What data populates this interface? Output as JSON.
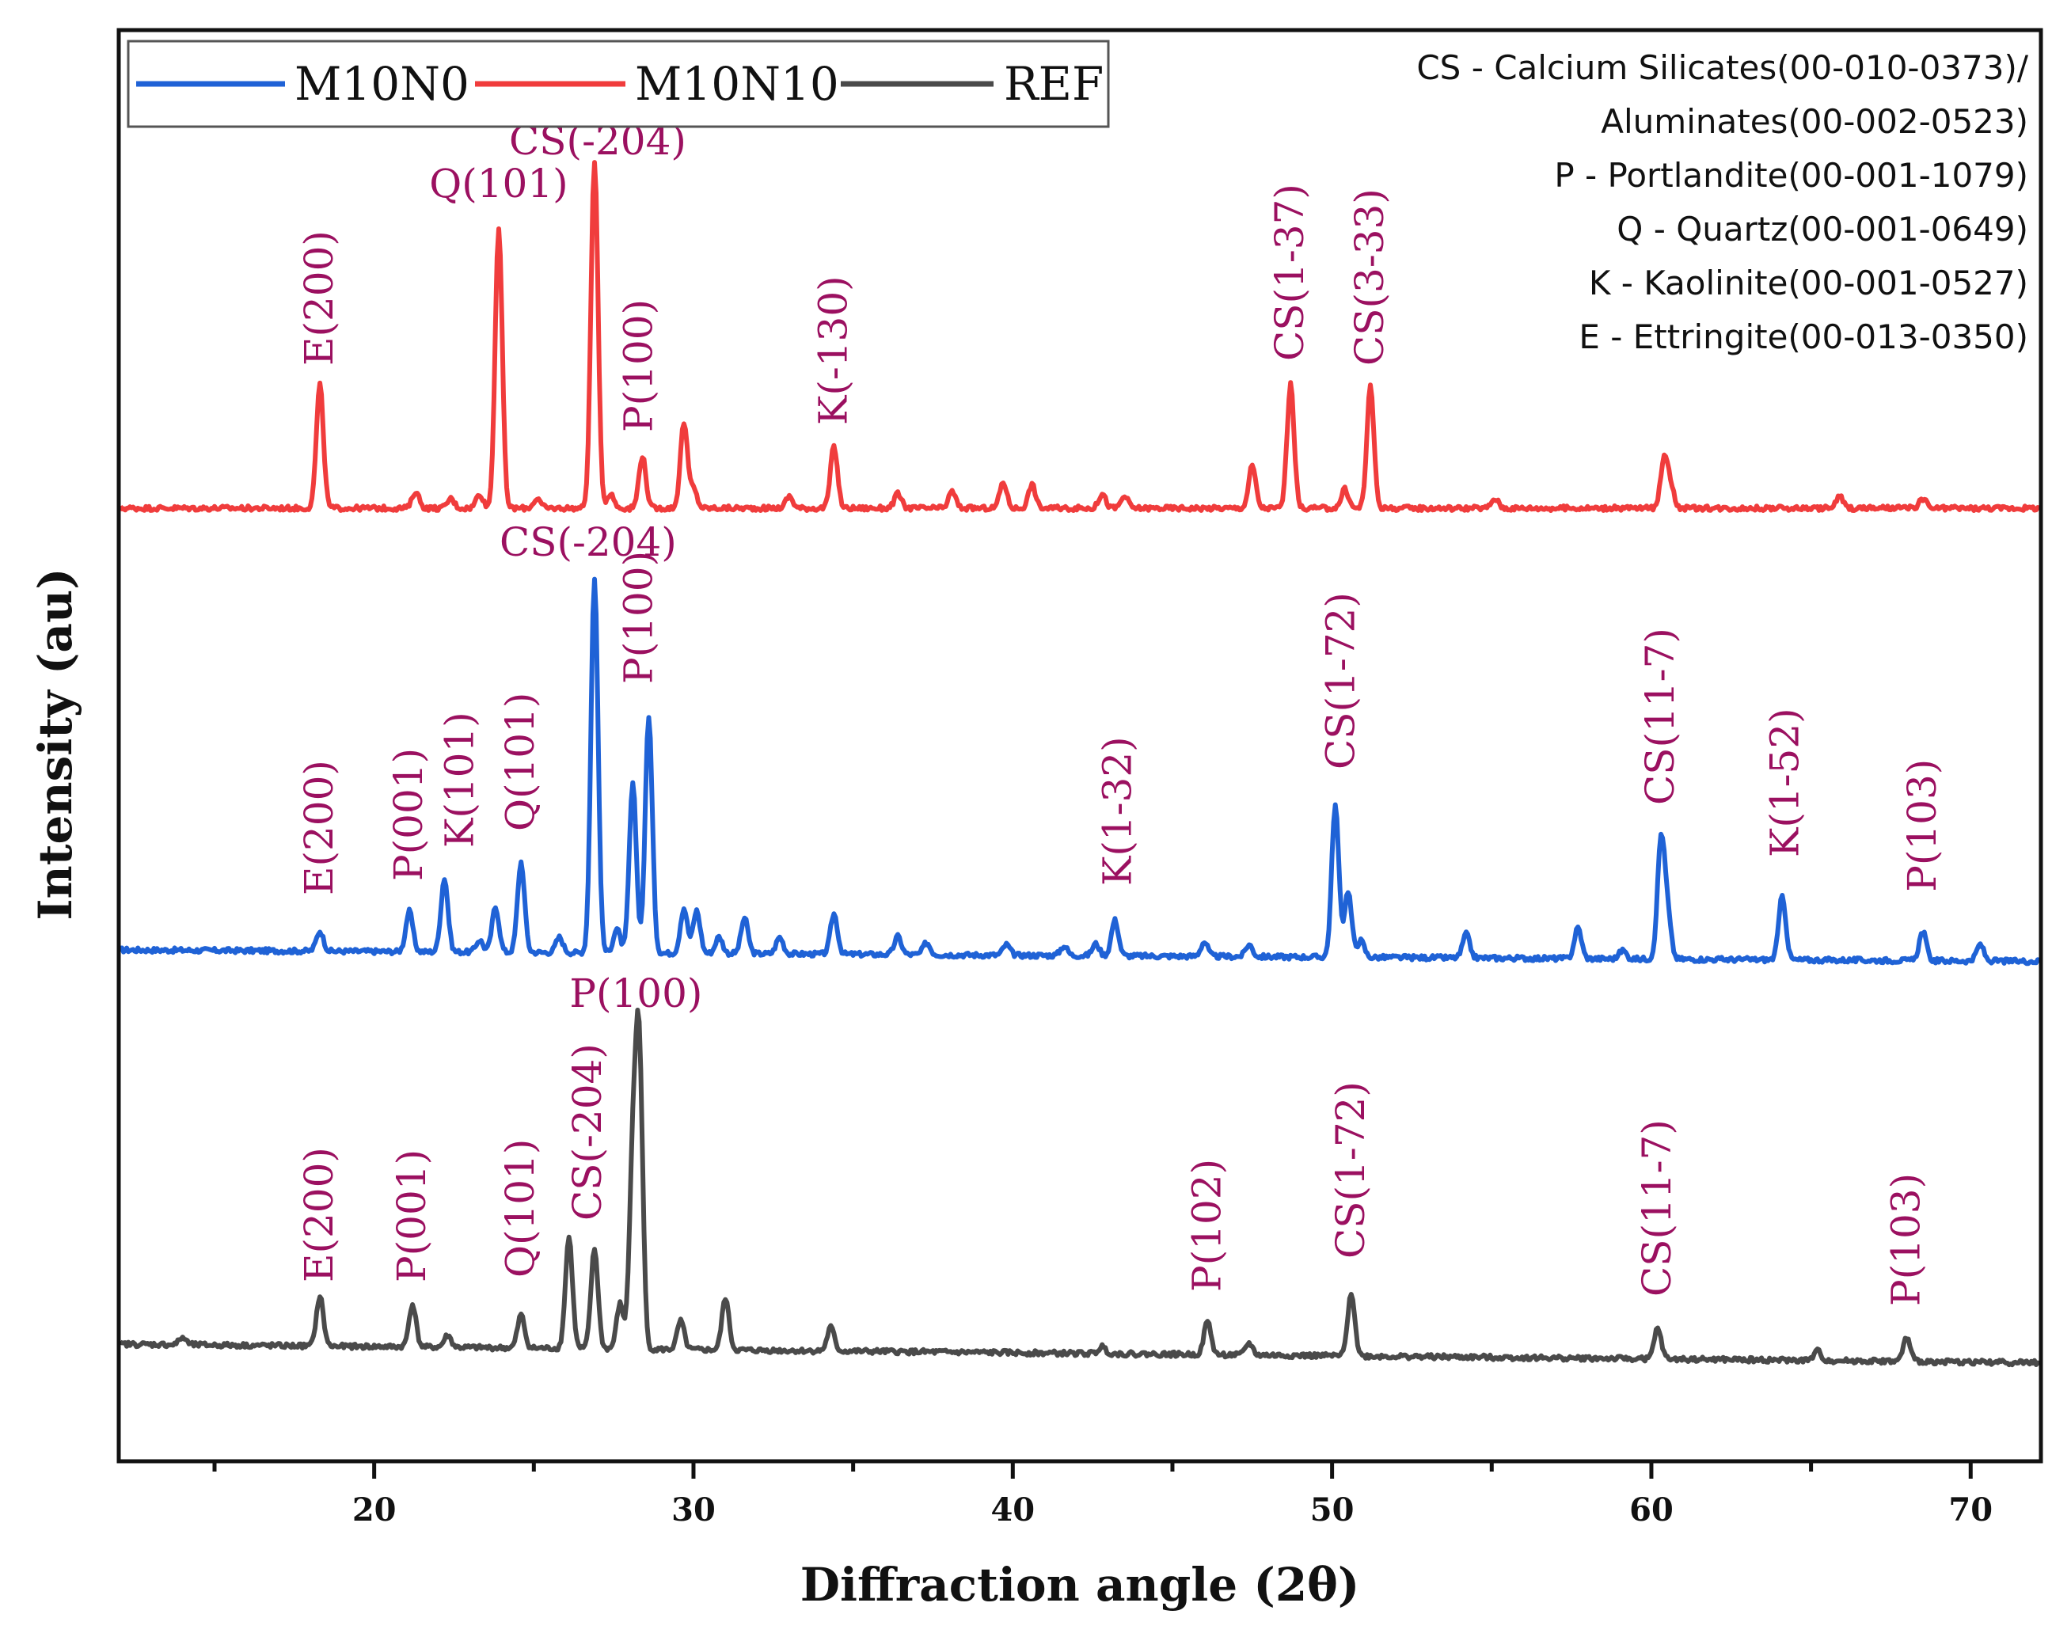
{
  "chart_data": {
    "type": "line",
    "xlabel": "Diffraction angle (2θ)",
    "ylabel": "Intensity (au)",
    "xlim": [
      12,
      72.2
    ],
    "x_ticks": [
      20,
      30,
      40,
      50,
      60,
      70
    ],
    "x_tick_labels": [
      "20",
      "30",
      "40",
      "50",
      "60",
      "70"
    ],
    "legend": {
      "placement": "top-left",
      "entries": [
        "M10N0",
        "M10N10",
        "REF"
      ]
    },
    "series": [
      {
        "name": "M10N0",
        "color": "#1f62d6",
        "baseline": 0.0,
        "slope": -0.04,
        "noise": 0.05,
        "peaks": [
          [
            18.3,
            0.42
          ],
          [
            21.1,
            0.85
          ],
          [
            22.2,
            1.55
          ],
          [
            23.3,
            0.25
          ],
          [
            23.8,
            0.95
          ],
          [
            24.6,
            1.9
          ],
          [
            25.8,
            0.32
          ],
          [
            26.9,
            7.9
          ],
          [
            27.6,
            0.5
          ],
          [
            28.1,
            3.55
          ],
          [
            28.6,
            5.0
          ],
          [
            29.7,
            0.95
          ],
          [
            30.1,
            0.9
          ],
          [
            30.8,
            0.35
          ],
          [
            31.6,
            0.75
          ],
          [
            32.7,
            0.35
          ],
          [
            34.4,
            0.85
          ],
          [
            36.4,
            0.38
          ],
          [
            37.3,
            0.25
          ],
          [
            39.8,
            0.22
          ],
          [
            41.6,
            0.2
          ],
          [
            42.6,
            0.25
          ],
          [
            43.2,
            0.75
          ],
          [
            46.0,
            0.3
          ],
          [
            47.4,
            0.25
          ],
          [
            50.1,
            3.2
          ],
          [
            50.5,
            1.4
          ],
          [
            50.9,
            0.35
          ],
          [
            54.2,
            0.5
          ],
          [
            57.7,
            0.65
          ],
          [
            59.1,
            0.18
          ],
          [
            60.3,
            2.45
          ],
          [
            60.5,
            0.95
          ],
          [
            64.1,
            1.35
          ],
          [
            68.5,
            0.62
          ],
          [
            70.3,
            0.35
          ]
        ],
        "labels": [
          {
            "text": "E(200)",
            "x": 18.3,
            "y": 1.15,
            "rot": true
          },
          {
            "text": "P(001)",
            "x": 21.1,
            "y": 1.45,
            "rot": true
          },
          {
            "text": "K(101)",
            "x": 22.7,
            "y": 2.15,
            "rot": true
          },
          {
            "text": "Q(101)",
            "x": 24.6,
            "y": 2.5,
            "rot": true
          },
          {
            "text": "CS(-204)",
            "x": 26.7,
            "y": 8.3,
            "rot": false
          },
          {
            "text": "P(100)",
            "x": 28.3,
            "y": 5.6,
            "rot": true
          },
          {
            "text": "K(1-32)",
            "x": 43.3,
            "y": 1.35,
            "rot": true
          },
          {
            "text": "CS(1-72)",
            "x": 50.3,
            "y": 3.8,
            "rot": true
          },
          {
            "text": "CS(11-7)",
            "x": 60.3,
            "y": 3.05,
            "rot": true
          },
          {
            "text": "K(1-52)",
            "x": 64.2,
            "y": 1.95,
            "rot": true
          },
          {
            "text": "P(103)",
            "x": 68.5,
            "y": 1.22,
            "rot": true
          }
        ]
      },
      {
        "name": "M10N10",
        "color": "#f03c3c",
        "baseline": 9.3,
        "slope": 0.0,
        "noise": 0.05,
        "peaks": [
          [
            18.3,
            2.6
          ],
          [
            21.3,
            0.35
          ],
          [
            22.4,
            0.2
          ],
          [
            23.3,
            0.3
          ],
          [
            23.9,
            5.9
          ],
          [
            25.1,
            0.2
          ],
          [
            26.9,
            7.3
          ],
          [
            27.4,
            0.3
          ],
          [
            28.4,
            1.1
          ],
          [
            29.7,
            1.8
          ],
          [
            30.0,
            0.4
          ],
          [
            33.0,
            0.25
          ],
          [
            34.4,
            1.3
          ],
          [
            36.4,
            0.3
          ],
          [
            38.1,
            0.35
          ],
          [
            39.7,
            0.55
          ],
          [
            40.6,
            0.5
          ],
          [
            42.8,
            0.3
          ],
          [
            43.5,
            0.25
          ],
          [
            47.5,
            0.9
          ],
          [
            48.7,
            2.6
          ],
          [
            50.4,
            0.4
          ],
          [
            51.2,
            2.55
          ],
          [
            55.1,
            0.2
          ],
          [
            60.4,
            1.05
          ],
          [
            60.6,
            0.45
          ],
          [
            65.9,
            0.25
          ],
          [
            68.5,
            0.2
          ]
        ],
        "labels": [
          {
            "text": "E(200)",
            "x": 18.3,
            "y": 12.3,
            "rot": true
          },
          {
            "text": "Q(101)",
            "x": 23.9,
            "y": 15.85,
            "rot": false
          },
          {
            "text": "CS(-204)",
            "x": 27.0,
            "y": 16.75,
            "rot": false
          },
          {
            "text": "P(100)",
            "x": 28.3,
            "y": 10.9,
            "rot": true
          },
          {
            "text": "K(-130)",
            "x": 34.4,
            "y": 11.05,
            "rot": true
          },
          {
            "text": "CS(1-37)",
            "x": 48.7,
            "y": 12.4,
            "rot": true
          },
          {
            "text": "CS(3-33)",
            "x": 51.2,
            "y": 12.3,
            "rot": true
          }
        ]
      },
      {
        "name": "REF",
        "color": "#4a4a4a",
        "baseline": -8.3,
        "slope": -0.065,
        "noise": 0.05,
        "peaks": [
          [
            14.0,
            0.15
          ],
          [
            18.3,
            1.05
          ],
          [
            21.2,
            0.9
          ],
          [
            22.3,
            0.25
          ],
          [
            24.6,
            0.7
          ],
          [
            26.1,
            2.35
          ],
          [
            26.9,
            2.1
          ],
          [
            27.7,
            0.95
          ],
          [
            28.1,
            3.85
          ],
          [
            28.3,
            6.2
          ],
          [
            29.6,
            0.6
          ],
          [
            31.0,
            1.1
          ],
          [
            34.3,
            0.5
          ],
          [
            42.8,
            0.15
          ],
          [
            46.1,
            0.7
          ],
          [
            47.4,
            0.25
          ],
          [
            50.6,
            1.35
          ],
          [
            60.2,
            0.65
          ],
          [
            65.2,
            0.2
          ],
          [
            68.0,
            0.5
          ]
        ],
        "labels": [
          {
            "text": "E(200)",
            "x": 18.3,
            "y": -7.0,
            "rot": true
          },
          {
            "text": "P(001)",
            "x": 21.2,
            "y": -7.0,
            "rot": true
          },
          {
            "text": "Q(101)",
            "x": 24.6,
            "y": -6.9,
            "rot": true
          },
          {
            "text": "CS(-204)",
            "x": 26.7,
            "y": -5.7,
            "rot": true
          },
          {
            "text": "P(100)",
            "x": 28.2,
            "y": -1.2,
            "rot": false
          },
          {
            "text": "P(102)",
            "x": 46.1,
            "y": -7.2,
            "rot": true
          },
          {
            "text": "CS(1-72)",
            "x": 50.6,
            "y": -6.5,
            "rot": true
          },
          {
            "text": "CS(11-7)",
            "x": 60.2,
            "y": -7.3,
            "rot": true
          },
          {
            "text": "P(103)",
            "x": 68.0,
            "y": -7.5,
            "rot": true
          }
        ]
      }
    ],
    "reference_legend": [
      "CS - Calcium Silicates(00-010-0373)/",
      "Aluminates(00-002-0523)",
      "P - Portlandite(00-001-1079)",
      "Q - Quartz(00-001-0649)",
      "K - Kaolinite(00-001-0527)",
      "E - Ettringite(00-013-0350)"
    ]
  }
}
